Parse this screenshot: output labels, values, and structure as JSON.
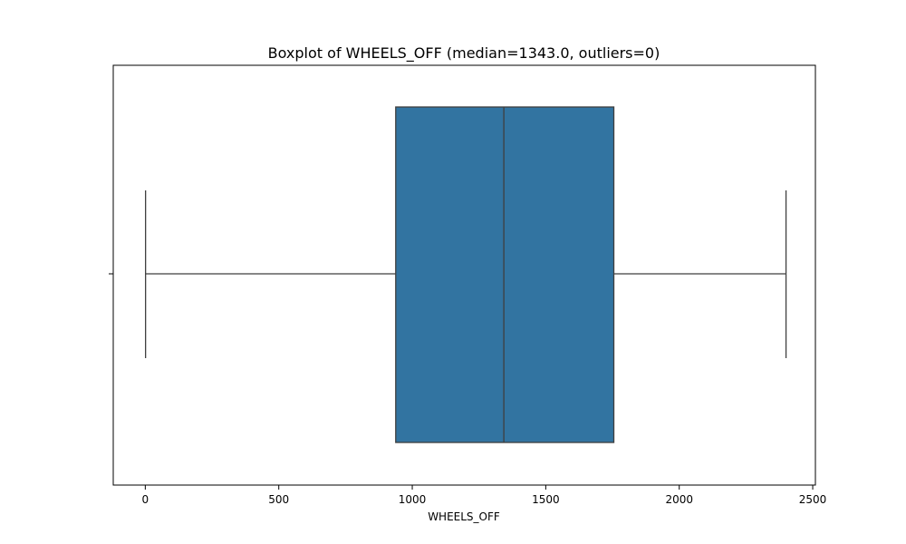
{
  "chart_data": {
    "type": "boxplot",
    "title": "Boxplot of WHEELS_OFF (median=1343.0, outliers=0)",
    "xlabel": "WHEELS_OFF",
    "ylabel": "",
    "xlim": [
      -120,
      2510
    ],
    "xticks": [
      0,
      500,
      1000,
      1500,
      2000,
      2500
    ],
    "xtick_labels": [
      "0",
      "500",
      "1000",
      "1500",
      "2000",
      "2500"
    ],
    "grid": false,
    "orientation": "horizontal",
    "box": {
      "min": 1,
      "q1": 938,
      "median": 1343,
      "q3": 1755,
      "max": 2400,
      "outliers": []
    },
    "colors": {
      "box_fill": "#3274a1",
      "line": "#3f3f3f"
    }
  }
}
